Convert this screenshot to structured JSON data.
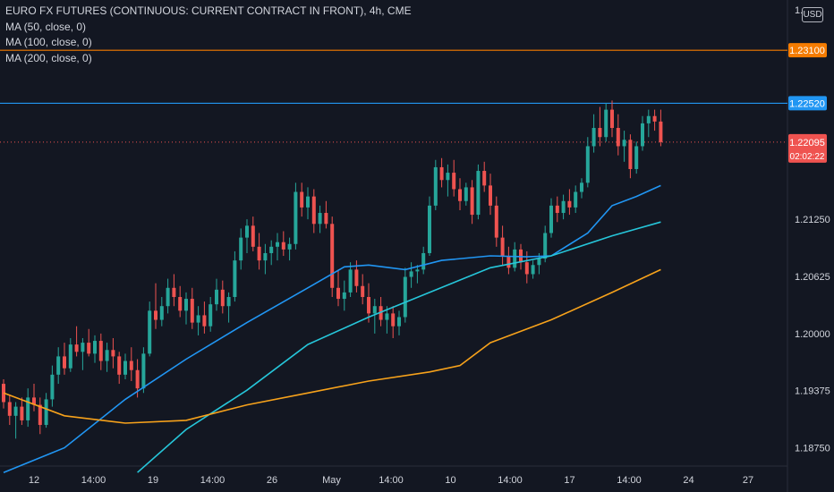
{
  "header": {
    "title": "EURO FX FUTURES (CONTINUOUS: CURRENT CONTRACT IN FRONT), 4h, CME",
    "indicators": [
      "MA (50, close, 0)",
      "MA (100, close, 0)",
      "MA (200, close, 0)"
    ],
    "currency": "USD",
    "top_price_partial": "1.…"
  },
  "colors": {
    "background": "#131722",
    "up": "#26a69a",
    "down": "#ef5350",
    "ma50": "#2196f3",
    "ma100": "#26c6da",
    "ma200": "#f7a21b",
    "resistance_high": "#f57c00",
    "resistance_mid": "#2196f3",
    "current_price": "#ef5350",
    "text": "#d1d4dc"
  },
  "chart_data": {
    "type": "candlestick",
    "interval": "4h",
    "x_ticks": [
      "12",
      "14:00",
      "19",
      "14:00",
      "26",
      "May",
      "14:00",
      "10",
      "14:00",
      "17",
      "14:00",
      "24",
      "27"
    ],
    "y_ticks": [
      "1.21250",
      "1.20625",
      "1.20000",
      "1.19375",
      "1.18750"
    ],
    "ylim": [
      1.1855,
      1.2365
    ],
    "horizontal_lines": [
      {
        "label": "1.23100",
        "value": 1.231,
        "color": "#f57c00"
      },
      {
        "label": "1.22520",
        "value": 1.2252,
        "color": "#2196f3"
      }
    ],
    "current_price": {
      "label": "1.22095",
      "value": 1.22095,
      "countdown": "02:02:22"
    },
    "candles_approx": [
      [
        1.1945,
        1.195,
        1.1918,
        1.1925
      ],
      [
        1.1925,
        1.1933,
        1.19,
        1.191
      ],
      [
        1.191,
        1.1925,
        1.1885,
        1.192
      ],
      [
        1.192,
        1.193,
        1.19,
        1.1905
      ],
      [
        1.1905,
        1.194,
        1.1898,
        1.193
      ],
      [
        1.193,
        1.1945,
        1.1915,
        1.1922
      ],
      [
        1.1922,
        1.193,
        1.189,
        1.19
      ],
      [
        1.19,
        1.1935,
        1.1897,
        1.1928
      ],
      [
        1.1928,
        1.1965,
        1.192,
        1.1955
      ],
      [
        1.1955,
        1.1985,
        1.1945,
        1.1975
      ],
      [
        1.1975,
        1.199,
        1.1955,
        1.1962
      ],
      [
        1.1962,
        1.1995,
        1.1958,
        1.1988
      ],
      [
        1.1988,
        1.2008,
        1.1975,
        1.198
      ],
      [
        1.198,
        1.1995,
        1.196,
        1.199
      ],
      [
        1.199,
        1.2005,
        1.1975,
        1.1978
      ],
      [
        1.1978,
        1.1998,
        1.1968,
        1.1992
      ],
      [
        1.1992,
        1.2,
        1.196,
        1.197
      ],
      [
        1.197,
        1.199,
        1.1958,
        1.1982
      ],
      [
        1.1982,
        1.1995,
        1.1962,
        1.1975
      ],
      [
        1.1975,
        1.198,
        1.1945,
        1.1955
      ],
      [
        1.1955,
        1.1978,
        1.195,
        1.197
      ],
      [
        1.197,
        1.1985,
        1.1948,
        1.196
      ],
      [
        1.196,
        1.1972,
        1.193,
        1.194
      ],
      [
        1.194,
        1.1985,
        1.1935,
        1.1978
      ],
      [
        1.1978,
        1.2035,
        1.1975,
        1.2025
      ],
      [
        1.2025,
        1.2055,
        1.2005,
        1.2015
      ],
      [
        1.2015,
        1.204,
        1.2008,
        1.203
      ],
      [
        1.203,
        1.206,
        1.2022,
        1.205
      ],
      [
        1.205,
        1.2065,
        1.203,
        1.204
      ],
      [
        1.204,
        1.2052,
        1.2018,
        1.2025
      ],
      [
        1.2025,
        1.2045,
        1.201,
        1.2038
      ],
      [
        1.2038,
        1.205,
        1.2005,
        1.2012
      ],
      [
        1.2012,
        1.203,
        1.1998,
        1.202
      ],
      [
        1.202,
        1.2035,
        1.2,
        1.2008
      ],
      [
        1.2008,
        1.204,
        1.2002,
        1.2032
      ],
      [
        1.2032,
        1.206,
        1.2025,
        1.2048
      ],
      [
        1.2048,
        1.2058,
        1.2022,
        1.203
      ],
      [
        1.203,
        1.2045,
        1.2012,
        1.204
      ],
      [
        1.204,
        1.209,
        1.2035,
        1.208
      ],
      [
        1.208,
        1.2115,
        1.207,
        1.2105
      ],
      [
        1.2105,
        1.2125,
        1.2088,
        1.2118
      ],
      [
        1.2118,
        1.2128,
        1.209,
        1.2095
      ],
      [
        1.2095,
        1.211,
        1.207,
        1.208
      ],
      [
        1.208,
        1.2098,
        1.2065,
        1.2088
      ],
      [
        1.2088,
        1.2102,
        1.2075,
        1.2095
      ],
      [
        1.2095,
        1.211,
        1.208,
        1.21
      ],
      [
        1.21,
        1.2112,
        1.2085,
        1.2092
      ],
      [
        1.2092,
        1.2105,
        1.208,
        1.2098
      ],
      [
        1.2098,
        1.2165,
        1.2092,
        1.2155
      ],
      [
        1.2155,
        1.2165,
        1.2128,
        1.2138
      ],
      [
        1.2138,
        1.216,
        1.2125,
        1.215
      ],
      [
        1.215,
        1.2158,
        1.211,
        1.212
      ],
      [
        1.212,
        1.214,
        1.211,
        1.2132
      ],
      [
        1.2132,
        1.2145,
        1.2115,
        1.212
      ],
      [
        1.212,
        1.2128,
        1.204,
        1.205
      ],
      [
        1.205,
        1.207,
        1.203,
        1.2038
      ],
      [
        1.2038,
        1.2058,
        1.2025,
        1.2045
      ],
      [
        1.2045,
        1.2078,
        1.204,
        1.207
      ],
      [
        1.207,
        1.208,
        1.2045,
        1.2052
      ],
      [
        1.2052,
        1.2065,
        1.2032,
        1.204
      ],
      [
        1.204,
        1.2055,
        1.2012,
        1.2022
      ],
      [
        1.2022,
        1.2038,
        1.2,
        1.203
      ],
      [
        1.203,
        1.204,
        1.2008,
        1.2015
      ],
      [
        1.2015,
        1.203,
        1.2,
        1.2022
      ],
      [
        1.2022,
        1.203,
        1.1995,
        1.2008
      ],
      [
        1.2008,
        1.2025,
        1.1998,
        1.2018
      ],
      [
        1.2018,
        1.2072,
        1.2012,
        1.2062
      ],
      [
        1.2062,
        1.2078,
        1.205,
        1.2068
      ],
      [
        1.2068,
        1.2075,
        1.2055,
        1.207
      ],
      [
        1.207,
        1.2095,
        1.2065,
        1.2088
      ],
      [
        1.2088,
        1.215,
        1.2085,
        1.214
      ],
      [
        1.214,
        1.219,
        1.2135,
        1.2182
      ],
      [
        1.2182,
        1.2192,
        1.216,
        1.2168
      ],
      [
        1.2168,
        1.2185,
        1.215,
        1.2176
      ],
      [
        1.2176,
        1.219,
        1.215,
        1.2158
      ],
      [
        1.2158,
        1.217,
        1.2135,
        1.2145
      ],
      [
        1.2145,
        1.2165,
        1.214,
        1.216
      ],
      [
        1.216,
        1.2168,
        1.212,
        1.213
      ],
      [
        1.213,
        1.2185,
        1.2125,
        1.2178
      ],
      [
        1.2178,
        1.2188,
        1.2155,
        1.2162
      ],
      [
        1.2162,
        1.2175,
        1.213,
        1.214
      ],
      [
        1.214,
        1.215,
        1.2095,
        1.2105
      ],
      [
        1.2105,
        1.2118,
        1.2075,
        1.2085
      ],
      [
        1.2085,
        1.2095,
        1.2065,
        1.2072
      ],
      [
        1.2072,
        1.21,
        1.2068,
        1.2092
      ],
      [
        1.2092,
        1.2098,
        1.207,
        1.2078
      ],
      [
        1.2078,
        1.209,
        1.2055,
        1.2065
      ],
      [
        1.2065,
        1.208,
        1.206,
        1.2075
      ],
      [
        1.2075,
        1.2088,
        1.2065,
        1.2082
      ],
      [
        1.2082,
        1.2118,
        1.2078,
        1.211
      ],
      [
        1.211,
        1.2148,
        1.2105,
        1.214
      ],
      [
        1.214,
        1.215,
        1.2122,
        1.2132
      ],
      [
        1.2132,
        1.2152,
        1.2125,
        1.2145
      ],
      [
        1.2145,
        1.2158,
        1.213,
        1.2138
      ],
      [
        1.2138,
        1.2162,
        1.2132,
        1.2155
      ],
      [
        1.2155,
        1.217,
        1.2148,
        1.2165
      ],
      [
        1.2165,
        1.2215,
        1.216,
        1.2205
      ],
      [
        1.2205,
        1.224,
        1.2198,
        1.2225
      ],
      [
        1.2225,
        1.2248,
        1.2205,
        1.2215
      ],
      [
        1.2215,
        1.2252,
        1.221,
        1.2245
      ],
      [
        1.2245,
        1.2255,
        1.2215,
        1.2225
      ],
      [
        1.2225,
        1.224,
        1.2195,
        1.2205
      ],
      [
        1.2205,
        1.2222,
        1.2188,
        1.2212
      ],
      [
        1.2212,
        1.2218,
        1.217,
        1.218
      ],
      [
        1.218,
        1.221,
        1.2175,
        1.2205
      ],
      [
        1.2205,
        1.2238,
        1.22,
        1.223
      ],
      [
        1.223,
        1.2245,
        1.2215,
        1.2238
      ],
      [
        1.2238,
        1.2245,
        1.2222,
        1.2232
      ],
      [
        1.2232,
        1.2245,
        1.2205,
        1.22095
      ]
    ],
    "moving_averages": [
      {
        "name": "MA (50, close, 0)",
        "color": "#2196f3",
        "points": [
          [
            0,
            1.1848
          ],
          [
            10,
            1.1875
          ],
          [
            20,
            1.1928
          ],
          [
            30,
            1.1972
          ],
          [
            40,
            1.2012
          ],
          [
            50,
            1.205
          ],
          [
            56,
            1.2073
          ],
          [
            60,
            1.2075
          ],
          [
            66,
            1.207
          ],
          [
            72,
            1.208
          ],
          [
            80,
            1.2085
          ],
          [
            86,
            1.2084
          ],
          [
            90,
            1.2085
          ],
          [
            96,
            1.211
          ],
          [
            100,
            1.214
          ],
          [
            104,
            1.215
          ],
          [
            108,
            1.2162
          ]
        ]
      },
      {
        "name": "MA (100, close, 0)",
        "color": "#26c6da",
        "points": [
          [
            22,
            1.1848
          ],
          [
            30,
            1.1895
          ],
          [
            40,
            1.1938
          ],
          [
            50,
            1.1988
          ],
          [
            60,
            1.2018
          ],
          [
            70,
            1.2045
          ],
          [
            80,
            1.2072
          ],
          [
            90,
            1.2085
          ],
          [
            100,
            1.2107
          ],
          [
            108,
            1.2122
          ]
        ]
      },
      {
        "name": "MA (200, close, 0)",
        "color": "#f7a21b",
        "points": [
          [
            0,
            1.1935
          ],
          [
            10,
            1.191
          ],
          [
            20,
            1.1902
          ],
          [
            30,
            1.1905
          ],
          [
            40,
            1.1922
          ],
          [
            50,
            1.1935
          ],
          [
            60,
            1.1948
          ],
          [
            70,
            1.1958
          ],
          [
            75,
            1.1965
          ],
          [
            80,
            1.199
          ],
          [
            90,
            1.2015
          ],
          [
            100,
            1.2045
          ],
          [
            108,
            1.207
          ]
        ]
      }
    ]
  }
}
